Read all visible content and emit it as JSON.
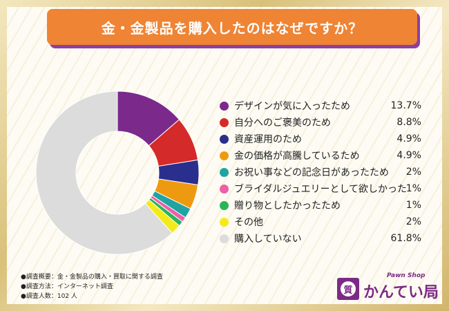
{
  "title": "金・金製品を購入したのはなぜですか？",
  "chart_data": {
    "type": "pie",
    "categories": [
      "デザインが気に入ったため",
      "自分へのご褒美のため",
      "資産運用のため",
      "金の価格が高騰しているため",
      "お祝い事などの記念日があったため",
      "ブライダルジュエリーとして欲しかった",
      "贈り物としたかったため",
      "その他",
      "購入していない"
    ],
    "values": [
      13.7,
      8.8,
      4.9,
      4.9,
      2,
      1,
      1,
      2,
      61.8
    ],
    "value_labels": [
      "13.7%",
      "8.8%",
      "4.9%",
      "4.9%",
      "2%",
      "1%",
      "1%",
      "2%",
      "61.8%"
    ],
    "colors": [
      "#7b2a8c",
      "#d52a2a",
      "#2a2e8c",
      "#ee9a10",
      "#1fa3a3",
      "#ee5fa7",
      "#2bb559",
      "#f4ea1a",
      "#dcdcdc"
    ],
    "donut": true,
    "legend_position": "right"
  },
  "notes": [
    "●調査概要：金・金製品の購入・買取に関する調査",
    "●調査方法：インターネット調査",
    "●調査人数：102 人"
  ],
  "logo": {
    "mark": "質",
    "subtitle": "Pawn Shop",
    "name": "かんてい局",
    "reg": "®"
  }
}
